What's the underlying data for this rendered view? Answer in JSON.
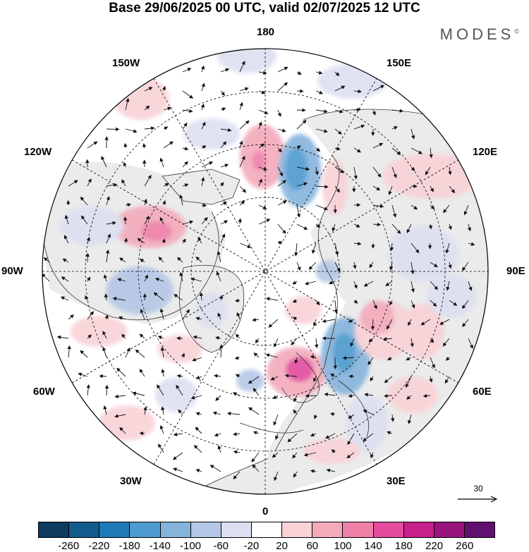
{
  "header": {
    "title": "Base 29/06/2025 00 UTC, valid 02/07/2025 12 UTC",
    "brand": "MODES",
    "brand_mark": "©"
  },
  "map": {
    "projection": "north-polar-stereographic",
    "longitude_labels": [
      "180",
      "150E",
      "120E",
      "90E",
      "60E",
      "30E",
      "0",
      "30W",
      "60W",
      "90W",
      "120W",
      "150W"
    ],
    "graticule_style": "dashed",
    "land_color": "#ebebeb",
    "wind_reference": {
      "value": "30"
    }
  },
  "colorbar": {
    "colors": [
      "#0d3a5f",
      "#135b8c",
      "#1f7ab8",
      "#4e9bcf",
      "#84b3dc",
      "#b5c7e6",
      "#dcdff0",
      "#ffffff",
      "#f8d2d6",
      "#f3aabb",
      "#ee80a8",
      "#e34c9d",
      "#c71f8b",
      "#99157d",
      "#621070"
    ],
    "tick_labels": [
      "-260",
      "-220",
      "-180",
      "-140",
      "-100",
      "-60",
      "-20",
      "20",
      "60",
      "100",
      "140",
      "180",
      "220",
      "260"
    ]
  }
}
